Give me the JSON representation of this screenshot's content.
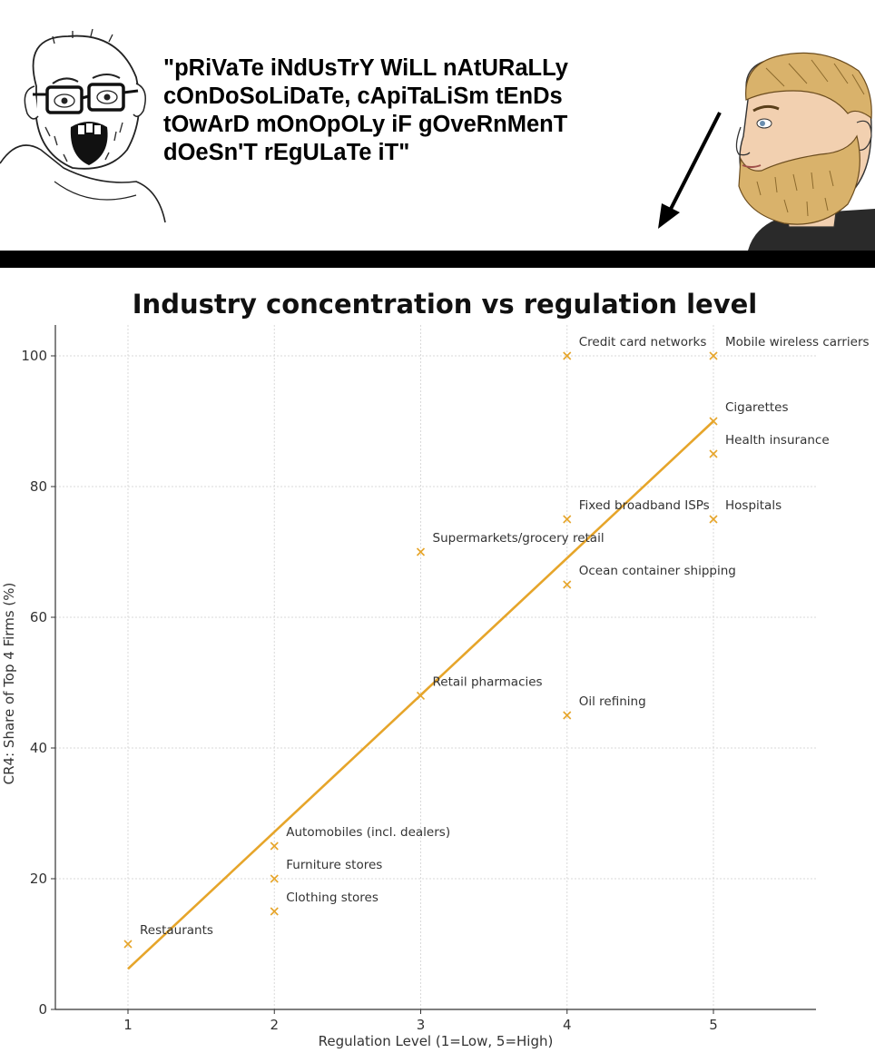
{
  "meme": {
    "caption_lines": [
      "\"pRiVaTe iNdUsTrY WiLL nAtURaLLy",
      "cOnDoSoLiDaTe, cApiTaLiSm tEnDs",
      "tOwArD mOnOpOLy iF gOveRnMenT",
      "dOeSn'T rEgULaTe iT\""
    ],
    "left_character": "crying-wojak-soyjak",
    "right_character": "bearded-chad-yes",
    "arrow": "arrow-pointing-down-left"
  },
  "chart_data": {
    "type": "scatter",
    "title": "Industry concentration vs regulation level",
    "xlabel": "Regulation Level (1=Low, 5=High)",
    "ylabel": "CR4: Share of Top 4 Firms (%)",
    "xlim": [
      0.5,
      5.7
    ],
    "ylim": [
      0,
      105
    ],
    "xticks": [
      "1",
      "2",
      "3",
      "4",
      "5"
    ],
    "yticks": [
      "0",
      "20",
      "40",
      "60",
      "80",
      "100"
    ],
    "grid": true,
    "marker": "x",
    "color": "#e6a52a",
    "points": [
      {
        "x": 1,
        "y": 10,
        "label": "Restaurants"
      },
      {
        "x": 2,
        "y": 15,
        "label": "Clothing stores"
      },
      {
        "x": 2,
        "y": 20,
        "label": "Furniture stores"
      },
      {
        "x": 2,
        "y": 25,
        "label": "Automobiles (incl. dealers)"
      },
      {
        "x": 3,
        "y": 48,
        "label": "Retail pharmacies"
      },
      {
        "x": 3,
        "y": 70,
        "label": "Supermarkets/grocery retail"
      },
      {
        "x": 4,
        "y": 45,
        "label": "Oil refining"
      },
      {
        "x": 4,
        "y": 65,
        "label": "Ocean container shipping"
      },
      {
        "x": 4,
        "y": 75,
        "label": "Fixed broadband ISPs"
      },
      {
        "x": 4,
        "y": 100,
        "label": "Credit card networks"
      },
      {
        "x": 5,
        "y": 75,
        "label": "Hospitals"
      },
      {
        "x": 5,
        "y": 85,
        "label": "Health insurance"
      },
      {
        "x": 5,
        "y": 90,
        "label": "Cigarettes"
      },
      {
        "x": 5,
        "y": 100,
        "label": "Mobile wireless carriers"
      }
    ],
    "trendline": {
      "x": [
        1,
        5
      ],
      "y": [
        6.2,
        90
      ]
    }
  }
}
